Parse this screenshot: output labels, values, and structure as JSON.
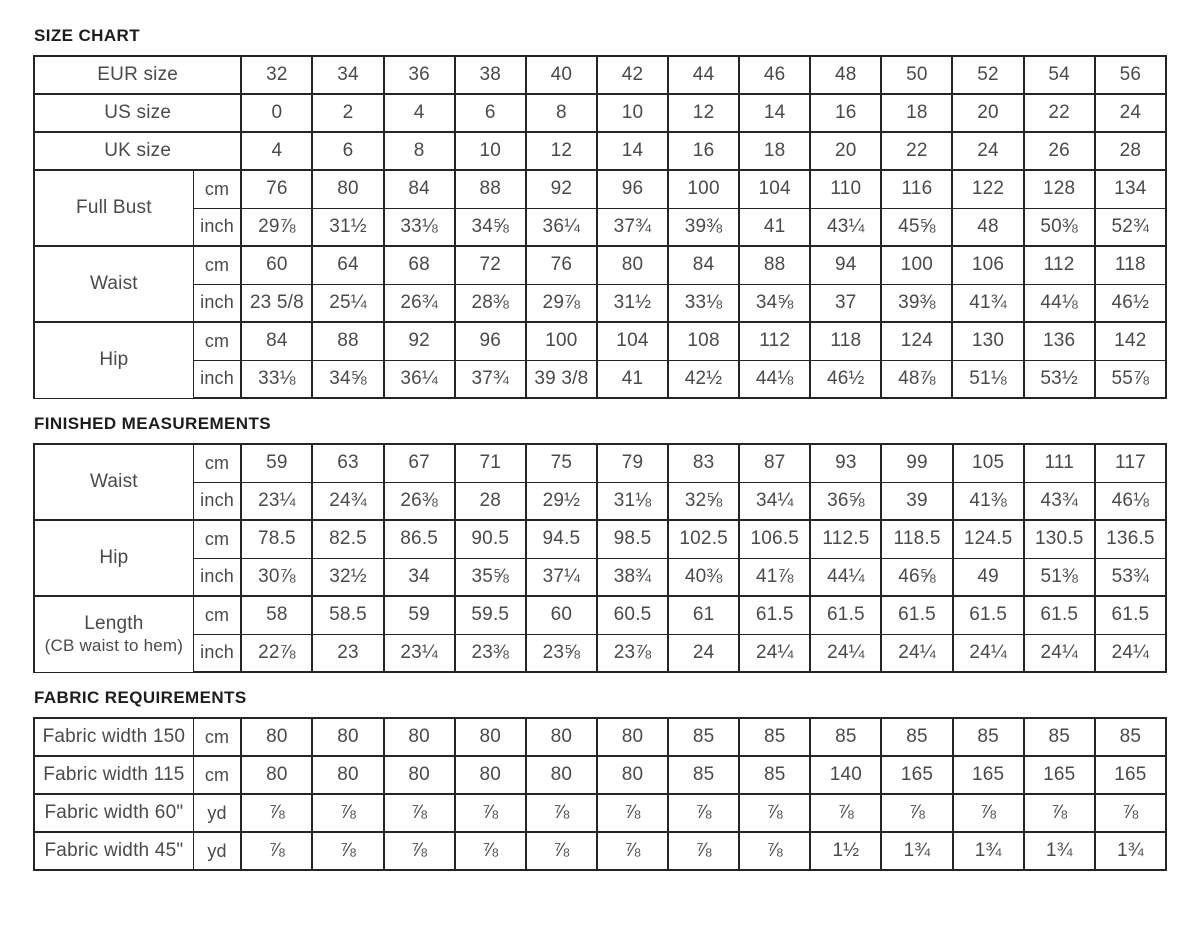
{
  "document": {
    "background_color": "#ffffff",
    "border_color": "#252525",
    "heading_color": "#1d1d1d",
    "text_color": "#4a4a4a"
  },
  "sections": [
    {
      "id": "size-chart",
      "title": "SIZE CHART",
      "rows": [
        {
          "type": "span",
          "label": "EUR size",
          "values": [
            "32",
            "34",
            "36",
            "38",
            "40",
            "42",
            "44",
            "46",
            "48",
            "50",
            "52",
            "54",
            "56"
          ]
        },
        {
          "type": "span",
          "label": "US size",
          "values": [
            "0",
            "2",
            "4",
            "6",
            "8",
            "10",
            "12",
            "14",
            "16",
            "18",
            "20",
            "22",
            "24"
          ]
        },
        {
          "type": "span",
          "label": "UK size",
          "values": [
            "4",
            "6",
            "8",
            "10",
            "12",
            "14",
            "16",
            "18",
            "20",
            "22",
            "24",
            "26",
            "28"
          ]
        },
        {
          "type": "pair",
          "label": "Full Bust",
          "sublabel": "",
          "units": [
            "cm",
            "inch"
          ],
          "cm_values": [
            "76",
            "80",
            "84",
            "88",
            "92",
            "96",
            "100",
            "104",
            "110",
            "116",
            "122",
            "128",
            "134"
          ],
          "inch_values": [
            "29⅞",
            "31½",
            "33⅛",
            "34⅝",
            "36¼",
            "37¾",
            "39⅜",
            "41",
            "43¼",
            "45⅝",
            "48",
            "50⅜",
            "52¾"
          ]
        },
        {
          "type": "pair",
          "label": "Waist",
          "sublabel": "",
          "units": [
            "cm",
            "inch"
          ],
          "cm_values": [
            "60",
            "64",
            "68",
            "72",
            "76",
            "80",
            "84",
            "88",
            "94",
            "100",
            "106",
            "112",
            "118"
          ],
          "inch_values": [
            "23 5/8",
            "25¼",
            "26¾",
            "28⅜",
            "29⅞",
            "31½",
            "33⅛",
            "34⅝",
            "37",
            "39⅜",
            "41¾",
            "44⅛",
            "46½"
          ]
        },
        {
          "type": "pair",
          "label": "Hip",
          "sublabel": "",
          "units": [
            "cm",
            "inch"
          ],
          "cm_values": [
            "84",
            "88",
            "92",
            "96",
            "100",
            "104",
            "108",
            "112",
            "118",
            "124",
            "130",
            "136",
            "142"
          ],
          "inch_values": [
            "33⅛",
            "34⅝",
            "36¼",
            "37¾",
            "39 3/8",
            "41",
            "42½",
            "44⅛",
            "46½",
            "48⅞",
            "51⅛",
            "53½",
            "55⅞"
          ]
        }
      ]
    },
    {
      "id": "finished-measurements",
      "title": "FINISHED MEASUREMENTS",
      "rows": [
        {
          "type": "pair",
          "label": "Waist",
          "sublabel": "",
          "units": [
            "cm",
            "inch"
          ],
          "cm_values": [
            "59",
            "63",
            "67",
            "71",
            "75",
            "79",
            "83",
            "87",
            "93",
            "99",
            "105",
            "111",
            "117"
          ],
          "inch_values": [
            "23¼",
            "24¾",
            "26⅜",
            "28",
            "29½",
            "31⅛",
            "32⅝",
            "34¼",
            "36⅝",
            "39",
            "41⅜",
            "43¾",
            "46⅛"
          ]
        },
        {
          "type": "pair",
          "label": "Hip",
          "sublabel": "",
          "units": [
            "cm",
            "inch"
          ],
          "cm_values": [
            "78.5",
            "82.5",
            "86.5",
            "90.5",
            "94.5",
            "98.5",
            "102.5",
            "106.5",
            "112.5",
            "118.5",
            "124.5",
            "130.5",
            "136.5"
          ],
          "inch_values": [
            "30⅞",
            "32½",
            "34",
            "35⅝",
            "37¼",
            "38¾",
            "40⅜",
            "41⅞",
            "44¼",
            "46⅝",
            "49",
            "51⅜",
            "53¾"
          ]
        },
        {
          "type": "pair",
          "label": "Length",
          "sublabel": "(CB waist to hem)",
          "units": [
            "cm",
            "inch"
          ],
          "cm_values": [
            "58",
            "58.5",
            "59",
            "59.5",
            "60",
            "60.5",
            "61",
            "61.5",
            "61.5",
            "61.5",
            "61.5",
            "61.5",
            "61.5"
          ],
          "inch_values": [
            "22⅞",
            "23",
            "23¼",
            "23⅜",
            "23⅝",
            "23⅞",
            "24",
            "24¼",
            "24¼",
            "24¼",
            "24¼",
            "24¼",
            "24¼"
          ]
        }
      ]
    },
    {
      "id": "fabric-requirements",
      "title": "FABRIC REQUIREMENTS",
      "rows": [
        {
          "type": "single",
          "label": "Fabric width 150",
          "unit": "cm",
          "values": [
            "80",
            "80",
            "80",
            "80",
            "80",
            "80",
            "85",
            "85",
            "85",
            "85",
            "85",
            "85",
            "85"
          ]
        },
        {
          "type": "single",
          "label": "Fabric width 115",
          "unit": "cm",
          "values": [
            "80",
            "80",
            "80",
            "80",
            "80",
            "80",
            "85",
            "85",
            "140",
            "165",
            "165",
            "165",
            "165"
          ]
        },
        {
          "type": "single",
          "label": "Fabric width 60\"",
          "unit": "yd",
          "values": [
            "⅞",
            "⅞",
            "⅞",
            "⅞",
            "⅞",
            "⅞",
            "⅞",
            "⅞",
            "⅞",
            "⅞",
            "⅞",
            "⅞",
            "⅞"
          ]
        },
        {
          "type": "single",
          "label": "Fabric width 45\"",
          "unit": "yd",
          "values": [
            "⅞",
            "⅞",
            "⅞",
            "⅞",
            "⅞",
            "⅞",
            "⅞",
            "⅞",
            "1½",
            "1¾",
            "1¾",
            "1¾",
            "1¾"
          ]
        }
      ]
    }
  ],
  "layout": {
    "data_columns": 13,
    "label_col_width": 159,
    "unit_col_width": 48,
    "data_col_width": 71
  }
}
